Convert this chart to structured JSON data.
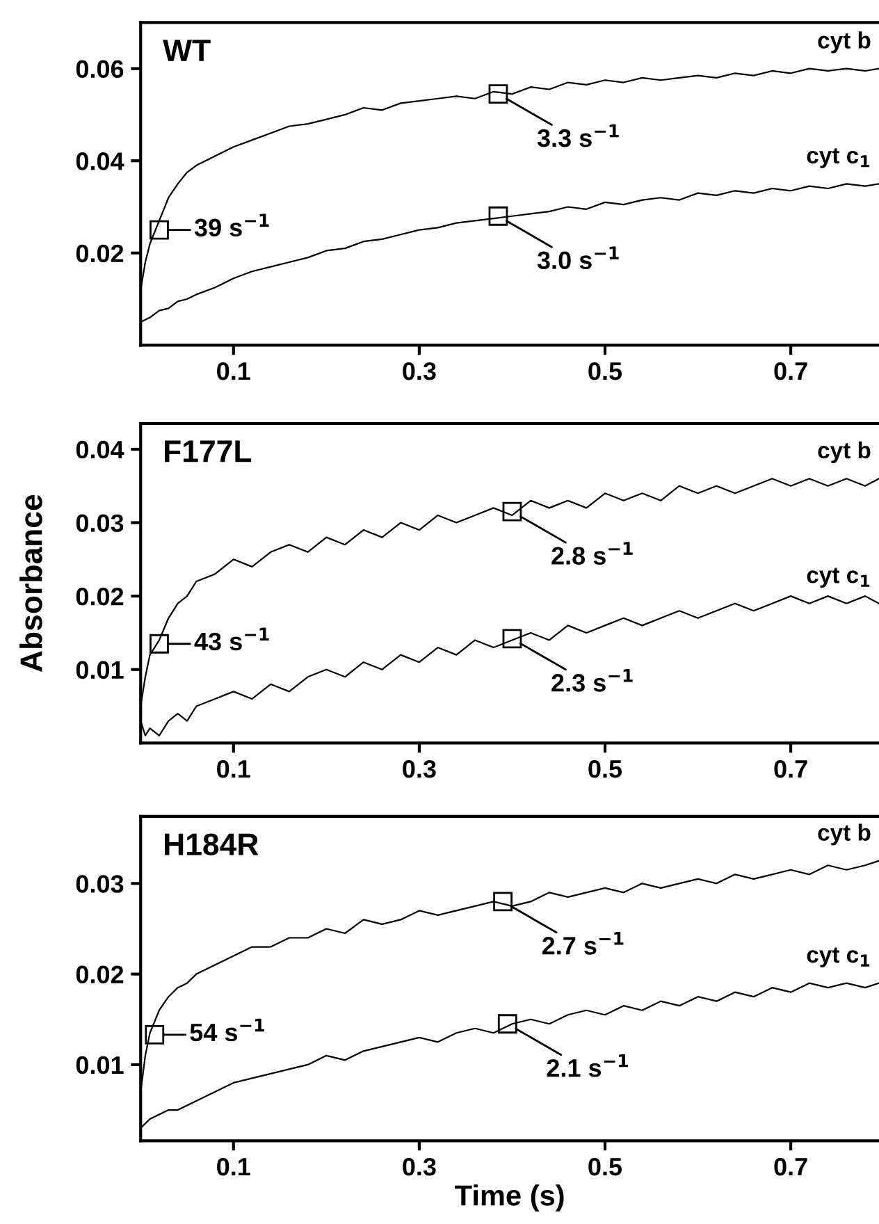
{
  "chart_data": [
    {
      "type": "line",
      "title": "WT",
      "xlim": [
        0,
        0.795
      ],
      "ylim": [
        0,
        0.07
      ],
      "xticks": [
        0.1,
        0.3,
        0.5,
        0.7
      ],
      "yticks": [
        0.02,
        0.04,
        0.06
      ],
      "grid": false,
      "legend": false,
      "marker": "none",
      "line_style": "solid",
      "x": [
        0,
        0.005,
        0.01,
        0.02,
        0.03,
        0.04,
        0.05,
        0.06,
        0.08,
        0.1,
        0.12,
        0.14,
        0.16,
        0.18,
        0.2,
        0.22,
        0.24,
        0.26,
        0.28,
        0.3,
        0.32,
        0.34,
        0.36,
        0.38,
        0.4,
        0.42,
        0.44,
        0.46,
        0.48,
        0.5,
        0.52,
        0.54,
        0.56,
        0.58,
        0.6,
        0.62,
        0.64,
        0.66,
        0.68,
        0.7,
        0.72,
        0.74,
        0.76,
        0.78,
        0.795
      ],
      "series": [
        {
          "name": "cyt b",
          "color": "#000000",
          "values": [
            0.012,
            0.018,
            0.022,
            0.027,
            0.032,
            0.035,
            0.0375,
            0.039,
            0.041,
            0.043,
            0.0445,
            0.046,
            0.0475,
            0.048,
            0.049,
            0.05,
            0.0515,
            0.051,
            0.0525,
            0.053,
            0.0535,
            0.054,
            0.0535,
            0.055,
            0.0545,
            0.056,
            0.0555,
            0.057,
            0.0565,
            0.0575,
            0.057,
            0.058,
            0.0575,
            0.058,
            0.0585,
            0.058,
            0.059,
            0.0585,
            0.0595,
            0.059,
            0.06,
            0.0595,
            0.06,
            0.0595,
            0.06
          ]
        },
        {
          "name": "cyt c$_{1}$",
          "color": "#000000",
          "values": [
            0.005,
            0.0055,
            0.006,
            0.0075,
            0.008,
            0.0095,
            0.01,
            0.011,
            0.0125,
            0.0145,
            0.016,
            0.017,
            0.018,
            0.019,
            0.0205,
            0.021,
            0.0225,
            0.023,
            0.024,
            0.025,
            0.0255,
            0.0265,
            0.027,
            0.0275,
            0.028,
            0.0285,
            0.029,
            0.03,
            0.0295,
            0.031,
            0.0305,
            0.0315,
            0.032,
            0.0315,
            0.033,
            0.0325,
            0.0335,
            0.033,
            0.034,
            0.0335,
            0.0345,
            0.034,
            0.035,
            0.0345,
            0.035
          ]
        }
      ],
      "annotations": [
        {
          "text": "39 s$^{−1}$",
          "x": 0.02,
          "y": 0.025
        },
        {
          "text": "3.3 s$^{−1}$",
          "x": 0.385,
          "y": 0.0545
        },
        {
          "text": "3.0 s$^{−1}$",
          "x": 0.385,
          "y": 0.028
        }
      ]
    },
    {
      "type": "line",
      "title": "F177L",
      "ylabel": "Absorbance",
      "xlim": [
        0,
        0.795
      ],
      "ylim": [
        0,
        0.0435
      ],
      "xticks": [
        0.1,
        0.3,
        0.5,
        0.7
      ],
      "yticks": [
        0.01,
        0.02,
        0.03,
        0.04
      ],
      "grid": false,
      "legend": false,
      "marker": "none",
      "line_style": "solid",
      "x": [
        0,
        0.005,
        0.01,
        0.02,
        0.03,
        0.04,
        0.05,
        0.06,
        0.08,
        0.1,
        0.12,
        0.14,
        0.16,
        0.18,
        0.2,
        0.22,
        0.24,
        0.26,
        0.28,
        0.3,
        0.32,
        0.34,
        0.36,
        0.38,
        0.4,
        0.42,
        0.44,
        0.46,
        0.48,
        0.5,
        0.52,
        0.54,
        0.56,
        0.58,
        0.6,
        0.62,
        0.64,
        0.66,
        0.68,
        0.7,
        0.72,
        0.74,
        0.76,
        0.78,
        0.795
      ],
      "series": [
        {
          "name": "cyt b",
          "color": "#000000",
          "values": [
            0.005,
            0.009,
            0.012,
            0.014,
            0.017,
            0.019,
            0.02,
            0.022,
            0.023,
            0.025,
            0.024,
            0.026,
            0.027,
            0.026,
            0.028,
            0.027,
            0.029,
            0.028,
            0.03,
            0.029,
            0.031,
            0.03,
            0.031,
            0.032,
            0.031,
            0.033,
            0.032,
            0.033,
            0.032,
            0.034,
            0.033,
            0.034,
            0.033,
            0.035,
            0.034,
            0.035,
            0.034,
            0.035,
            0.036,
            0.035,
            0.036,
            0.035,
            0.036,
            0.035,
            0.036
          ]
        },
        {
          "name": "cyt c$_{1}$",
          "color": "#000000",
          "values": [
            0.003,
            0.001,
            0.002,
            0.001,
            0.003,
            0.004,
            0.003,
            0.005,
            0.006,
            0.007,
            0.006,
            0.008,
            0.007,
            0.009,
            0.01,
            0.009,
            0.011,
            0.01,
            0.012,
            0.011,
            0.013,
            0.012,
            0.014,
            0.013,
            0.014,
            0.015,
            0.014,
            0.016,
            0.015,
            0.016,
            0.017,
            0.016,
            0.017,
            0.018,
            0.017,
            0.018,
            0.019,
            0.018,
            0.019,
            0.02,
            0.019,
            0.02,
            0.019,
            0.02,
            0.019
          ]
        }
      ],
      "annotations": [
        {
          "text": "43 s$^{−1}$",
          "x": 0.02,
          "y": 0.0135
        },
        {
          "text": "2.8 s$^{−1}$",
          "x": 0.4,
          "y": 0.0315
        },
        {
          "text": "2.3 s$^{−1}$",
          "x": 0.4,
          "y": 0.0142
        }
      ]
    },
    {
      "type": "line",
      "title": "H184R",
      "xlabel": "Time (s)",
      "xlim": [
        0,
        0.795
      ],
      "ylim": [
        0.0016,
        0.0374
      ],
      "xticks": [
        0.1,
        0.3,
        0.5,
        0.7
      ],
      "yticks": [
        0.01,
        0.02,
        0.03
      ],
      "grid": false,
      "legend": false,
      "marker": "none",
      "line_style": "solid",
      "x": [
        0,
        0.005,
        0.01,
        0.02,
        0.03,
        0.04,
        0.05,
        0.06,
        0.08,
        0.1,
        0.12,
        0.14,
        0.16,
        0.18,
        0.2,
        0.22,
        0.24,
        0.26,
        0.28,
        0.3,
        0.32,
        0.34,
        0.36,
        0.38,
        0.4,
        0.42,
        0.44,
        0.46,
        0.48,
        0.5,
        0.52,
        0.54,
        0.56,
        0.58,
        0.6,
        0.62,
        0.64,
        0.66,
        0.68,
        0.7,
        0.72,
        0.74,
        0.76,
        0.78,
        0.795
      ],
      "series": [
        {
          "name": "cyt b",
          "color": "#000000",
          "values": [
            0.007,
            0.011,
            0.0135,
            0.016,
            0.0175,
            0.0185,
            0.019,
            0.02,
            0.021,
            0.022,
            0.023,
            0.023,
            0.024,
            0.024,
            0.025,
            0.0245,
            0.026,
            0.0255,
            0.026,
            0.027,
            0.0265,
            0.027,
            0.0275,
            0.028,
            0.0275,
            0.028,
            0.029,
            0.0285,
            0.029,
            0.0295,
            0.029,
            0.03,
            0.0295,
            0.03,
            0.0305,
            0.03,
            0.031,
            0.0305,
            0.031,
            0.0315,
            0.031,
            0.032,
            0.0315,
            0.032,
            0.0325
          ]
        },
        {
          "name": "cyt c$_{1}$",
          "color": "#000000",
          "values": [
            0.003,
            0.0035,
            0.004,
            0.0045,
            0.005,
            0.005,
            0.0055,
            0.006,
            0.007,
            0.008,
            0.0085,
            0.009,
            0.0095,
            0.01,
            0.011,
            0.0105,
            0.0115,
            0.012,
            0.0125,
            0.013,
            0.0125,
            0.0135,
            0.014,
            0.0135,
            0.0145,
            0.015,
            0.0145,
            0.0155,
            0.016,
            0.0155,
            0.0165,
            0.016,
            0.017,
            0.0165,
            0.0175,
            0.017,
            0.018,
            0.0175,
            0.0185,
            0.018,
            0.019,
            0.0185,
            0.019,
            0.0185,
            0.019
          ]
        }
      ],
      "annotations": [
        {
          "text": "54 s$^{−1}$",
          "x": 0.015,
          "y": 0.0133
        },
        {
          "text": "2.7 s$^{−1}$",
          "x": 0.39,
          "y": 0.028
        },
        {
          "text": "2.1 s$^{−1}$",
          "x": 0.395,
          "y": 0.0145
        }
      ]
    }
  ]
}
